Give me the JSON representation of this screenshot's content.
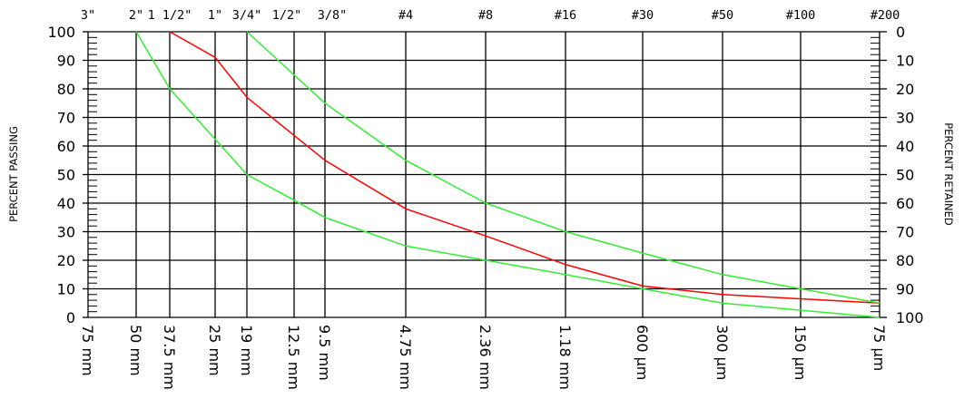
{
  "chart_data": {
    "type": "line",
    "ylabel_left": "PERCENT PASSING",
    "ylabel_right": "PERCENT RETAINED",
    "ylim": [
      0,
      100
    ],
    "y_ticks_left": [
      "0",
      "10",
      "20",
      "30",
      "40",
      "50",
      "60",
      "70",
      "80",
      "90",
      "100"
    ],
    "y_ticks_right": [
      "100",
      "90",
      "80",
      "70",
      "60",
      "50",
      "40",
      "30",
      "20",
      "10",
      "0"
    ],
    "sieve_sizes_mm": [
      75,
      50,
      37.5,
      25,
      19,
      12.5,
      9.5,
      4.75,
      2.36,
      1.18,
      0.6,
      0.3,
      0.15,
      0.075
    ],
    "x_ticks_bottom": [
      "75 mm",
      "50 mm",
      "37.5 mm",
      "25 mm",
      "19 mm",
      "12.5 mm",
      "9.5 mm",
      "4.75 mm",
      "2.36 mm",
      "1.18 mm",
      "600 µm",
      "300 µm",
      "150 µm",
      "75 µm"
    ],
    "x_ticks_top": [
      "3\"",
      "2\"",
      "1 1/2\"",
      "1\"",
      "3/4\"",
      "1/2\"",
      "3/8\"",
      "#4",
      "#8",
      "#16",
      "#30",
      "#50",
      "#100",
      "#200"
    ],
    "series": [
      {
        "color": "#ff0000",
        "x": [
          37.5,
          25,
          19,
          9.5,
          4.75,
          2.36,
          1.18,
          0.6,
          0.3,
          0.075
        ],
        "y": [
          100,
          91,
          77,
          55,
          38,
          28.5,
          18.5,
          11,
          8,
          5
        ]
      },
      {
        "color": "#33ee33",
        "x": [
          19,
          9.5,
          4.75,
          2.36,
          1.18,
          0.6,
          0.3,
          0.15,
          0.075
        ],
        "y": [
          100,
          75,
          55,
          40,
          30,
          22.5,
          15,
          10,
          5
        ]
      },
      {
        "color": "#33ee33",
        "x": [
          50,
          37.5,
          19,
          12.5,
          9.5,
          4.75,
          2.36,
          1.18,
          0.6,
          0.3,
          0.15,
          0.075
        ],
        "y": [
          100,
          80,
          50,
          41,
          35,
          25,
          20,
          15,
          10,
          5,
          2.5,
          0
        ]
      }
    ]
  }
}
